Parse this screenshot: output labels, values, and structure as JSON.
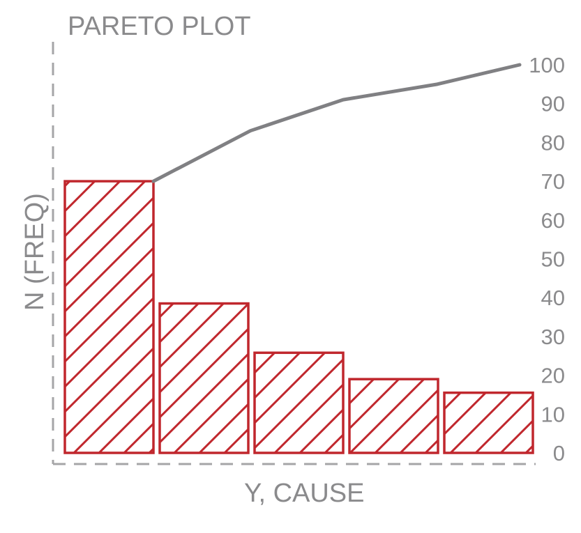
{
  "chart_data": {
    "type": "bar",
    "title": "PARETO PLOT",
    "xlabel": "Y, CAUSE",
    "ylabel": "N (FREQ)",
    "categories": [
      "",
      "",
      "",
      "",
      ""
    ],
    "values": [
      70,
      38.5,
      25.8,
      19,
      15.5
    ],
    "cumulative_line": [
      70,
      83,
      91,
      95,
      100
    ],
    "ylim": [
      0,
      100
    ],
    "yticks": [
      "0",
      "10",
      "20",
      "30",
      "40",
      "50",
      "60",
      "70",
      "80",
      "90",
      "100"
    ],
    "ytick_values": [
      0,
      10,
      20,
      30,
      40,
      50,
      60,
      70,
      80,
      90,
      100
    ],
    "bar_pattern": "diagonal-hatch",
    "grid": false
  },
  "colors": {
    "bar_stroke": "#c0272d",
    "line": "#808083",
    "text": "#8a8a8c",
    "axis": "#a5a5a7"
  }
}
